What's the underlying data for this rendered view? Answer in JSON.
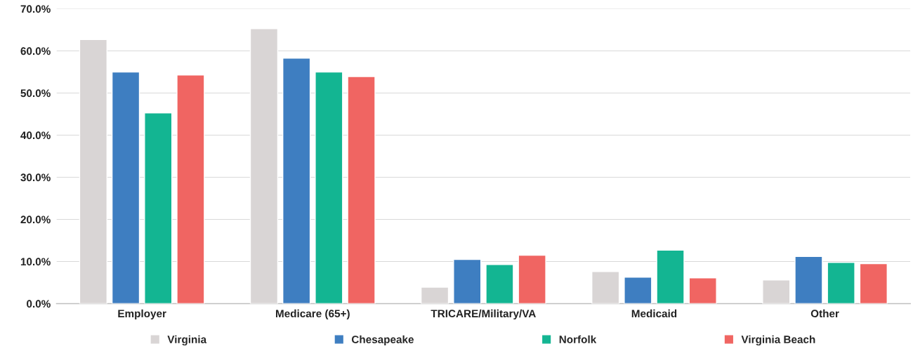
{
  "chart_data": {
    "type": "bar",
    "categories": [
      "Employer",
      "Medicare (65+)",
      "TRICARE/Military/VA",
      "Medicaid",
      "Other"
    ],
    "series": [
      {
        "name": "Virginia",
        "color": "#d9d5d5",
        "values": [
          62.7,
          65.3,
          3.9,
          7.6,
          5.6
        ]
      },
      {
        "name": "Chesapeake",
        "color": "#3e7ec1",
        "values": [
          55.0,
          58.3,
          10.5,
          6.3,
          11.2
        ]
      },
      {
        "name": "Norfolk",
        "color": "#13b592",
        "values": [
          45.3,
          55.0,
          9.3,
          12.7,
          9.8
        ]
      },
      {
        "name": "Virginia Beach",
        "color": "#f06562",
        "values": [
          54.3,
          53.9,
          11.5,
          6.1,
          9.5
        ]
      }
    ],
    "ylim": [
      0,
      70
    ],
    "yticks": [
      {
        "value": 0,
        "label": "0.0%"
      },
      {
        "value": 10,
        "label": "10.0%"
      },
      {
        "value": 20,
        "label": "20.0%"
      },
      {
        "value": 30,
        "label": "30.0%"
      },
      {
        "value": 40,
        "label": "40.0%"
      },
      {
        "value": 50,
        "label": "50.0%"
      },
      {
        "value": 60,
        "label": "60.0%"
      },
      {
        "value": 70,
        "label": "70.0%"
      }
    ],
    "grid": "y",
    "legend": "bottom"
  }
}
